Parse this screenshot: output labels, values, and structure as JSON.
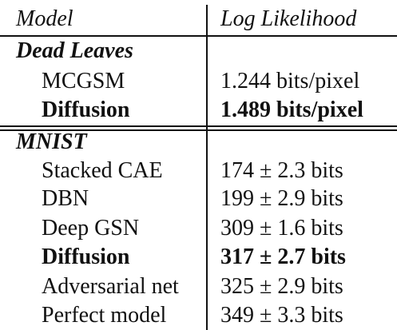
{
  "table": {
    "header": {
      "col1": "Model",
      "col2": "Log Likelihood"
    },
    "sections": [
      {
        "name": "Dead Leaves",
        "rows": [
          {
            "model": "MCGSM",
            "value": "1.244 bits/pixel",
            "bold": false
          },
          {
            "model": "Diffusion",
            "value": "1.489 bits/pixel",
            "bold": true
          }
        ]
      },
      {
        "name": "MNIST",
        "rows": [
          {
            "model": "Stacked CAE",
            "value": "174 ± 2.3 bits",
            "bold": false
          },
          {
            "model": "DBN",
            "value": "199 ± 2.9 bits",
            "bold": false
          },
          {
            "model": "Deep GSN",
            "value": "309 ± 1.6 bits",
            "bold": false
          },
          {
            "model": "Diffusion",
            "value": "317 ± 2.7 bits",
            "bold": true
          },
          {
            "model": "Adversarial net",
            "value": "325 ± 2.9 bits",
            "bold": false
          },
          {
            "model": "Perfect model",
            "value": "349 ± 3.3 bits",
            "bold": false
          }
        ]
      }
    ]
  }
}
